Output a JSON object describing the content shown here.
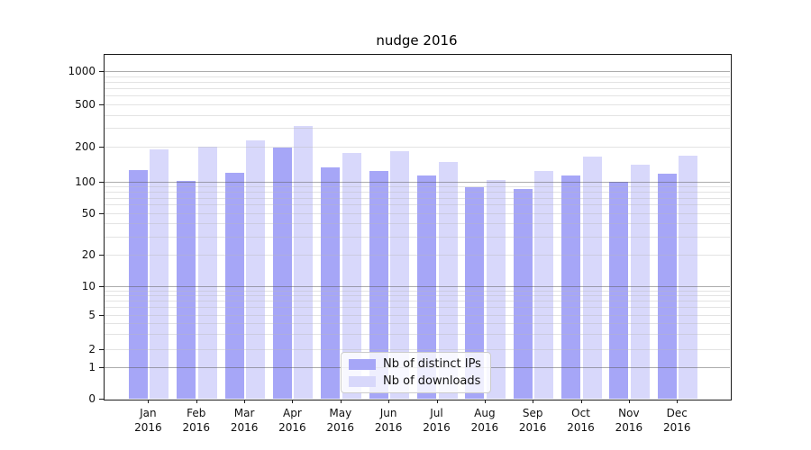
{
  "chart_data": {
    "type": "bar",
    "title": "nudge 2016",
    "xlabel": "",
    "ylabel": "",
    "yscale": "symlog",
    "ytick_values": [
      0,
      1,
      2,
      5,
      10,
      20,
      50,
      100,
      200,
      500,
      1000
    ],
    "ytick_labels": [
      "0",
      "1",
      "2",
      "5",
      "10",
      "20",
      "50",
      "100",
      "200",
      "500",
      "1000"
    ],
    "ylim": [
      0,
      1400
    ],
    "grid": "both",
    "legend_position": "lower center",
    "categories": [
      "Jan 2016",
      "Feb 2016",
      "Mar 2016",
      "Apr 2016",
      "May 2016",
      "Jun 2016",
      "Jul 2016",
      "Aug 2016",
      "Sep 2016",
      "Oct 2016",
      "Nov 2016",
      "Dec 2016"
    ],
    "series": [
      {
        "name": "Nb of distinct IPs",
        "color": "#a6a6f7",
        "values": [
          125,
          101,
          119,
          198,
          133,
          123,
          112,
          88,
          85,
          113,
          100,
          117
        ]
      },
      {
        "name": "Nb of downloads",
        "color": "#d8d8fb",
        "values": [
          190,
          200,
          230,
          314,
          178,
          184,
          149,
          102,
          123,
          164,
          141,
          169
        ]
      }
    ]
  },
  "colors": {
    "background": "#ffffff",
    "major_grid": "#a8a8a8",
    "minor_grid": "#e2e2e2",
    "axis": "#1c1c1c"
  }
}
